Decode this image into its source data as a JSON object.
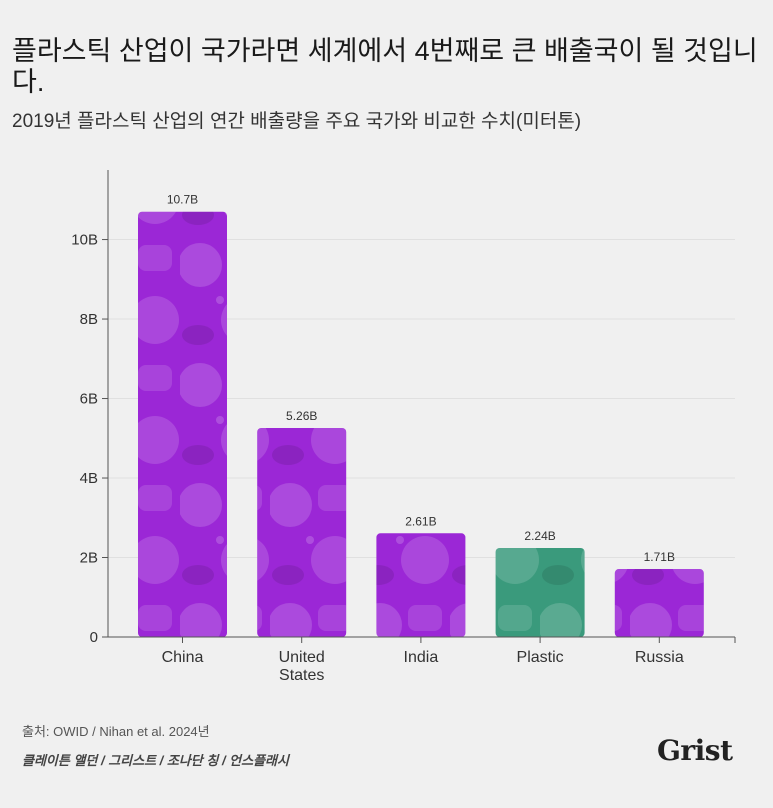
{
  "header": {
    "title": "플라스틱 산업이 국가라면 세계에서 4번째로 큰 배출국이 될 것입니다.",
    "subtitle": "2019년 플라스틱 산업의 연간 배출량을 주요 국가와 비교한 수치(미터톤)"
  },
  "footer": {
    "source": "출처: OWID / Nihan et al. 2024년",
    "credit": "클레이튼 앨던 / 그리스트 / 조나단 칭 / 언스플래시",
    "logo": "Grist"
  },
  "colors": {
    "country": "#9b27d6",
    "plastic": "#3a9a7c",
    "axis": "#555555",
    "grid": "#e0e0e0"
  },
  "chart_data": {
    "type": "bar",
    "categories": [
      [
        "China"
      ],
      [
        "United",
        "States"
      ],
      [
        "India"
      ],
      [
        "Plastic"
      ],
      [
        "Russia"
      ]
    ],
    "values": [
      10.7,
      5.26,
      2.61,
      2.24,
      1.71
    ],
    "data_labels": [
      "10.7B",
      "5.26B",
      "2.61B",
      "2.24B",
      "1.71B"
    ],
    "highlight": "Plastic",
    "yticks": [
      0,
      2,
      4,
      6,
      8,
      10
    ],
    "ytick_labels": [
      "0",
      "2B",
      "4B",
      "6B",
      "8B",
      "10B"
    ],
    "ylim": [
      0,
      11.75
    ],
    "grid": true
  }
}
